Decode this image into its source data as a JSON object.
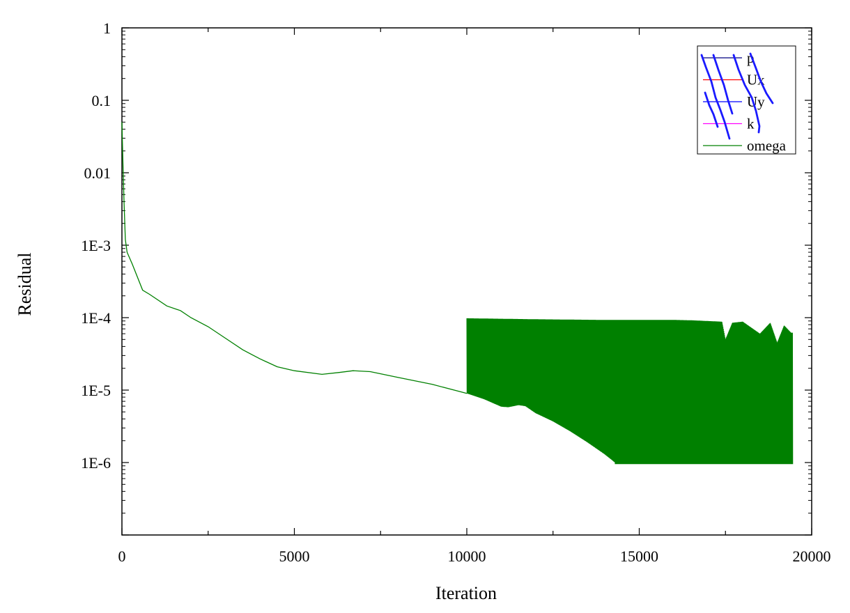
{
  "chart_data": {
    "type": "line",
    "title": "",
    "xlabel": "Iteration",
    "ylabel": "Residual",
    "x_scale": "linear",
    "y_scale": "log",
    "xlim": [
      0,
      20000
    ],
    "ylim": [
      1e-07,
      1
    ],
    "x_ticks": [
      0,
      5000,
      10000,
      15000,
      20000
    ],
    "x_tick_labels": [
      "0",
      "5000",
      "10000",
      "15000",
      "20000"
    ],
    "y_ticks": [
      1,
      0.1,
      0.01,
      0.001,
      0.0001,
      1e-05,
      1e-06
    ],
    "y_tick_labels": [
      "1",
      "0.1",
      "0.01",
      "1E-3",
      "1E-4",
      "1E-5",
      "1E-6"
    ],
    "grid": false,
    "legend_position": "top-right",
    "series": [
      {
        "name": "p",
        "color": "#000080",
        "points": []
      },
      {
        "name": "Ux",
        "color": "#ff0000",
        "points": []
      },
      {
        "name": "Uy",
        "color": "#0000ff",
        "points": []
      },
      {
        "name": "k",
        "color": "#ff00ff",
        "points": []
      },
      {
        "name": "omega",
        "color": "#008000",
        "points": [
          [
            0,
            0.05
          ],
          [
            20,
            0.02
          ],
          [
            60,
            0.004
          ],
          [
            100,
            0.0012
          ],
          [
            150,
            0.0008
          ],
          [
            300,
            0.00055
          ],
          [
            600,
            0.00024
          ],
          [
            800,
            0.00021
          ],
          [
            1300,
            0.000145
          ],
          [
            1700,
            0.000125
          ],
          [
            2000,
            0.0001
          ],
          [
            2500,
            7.5e-05
          ],
          [
            3000,
            5.2e-05
          ],
          [
            3500,
            3.6e-05
          ],
          [
            4000,
            2.7e-05
          ],
          [
            4500,
            2.1e-05
          ],
          [
            5000,
            1.85e-05
          ],
          [
            5800,
            1.65e-05
          ],
          [
            6300,
            1.75e-05
          ],
          [
            6700,
            1.85e-05
          ],
          [
            7200,
            1.8e-05
          ],
          [
            8000,
            1.5e-05
          ],
          [
            9000,
            1.2e-05
          ],
          [
            10000,
            9e-06
          ],
          [
            10500,
            7.5e-06
          ],
          [
            11000,
            5.9e-06
          ],
          [
            11200,
            5.8e-06
          ],
          [
            11500,
            6.2e-06
          ],
          [
            11700,
            6e-06
          ],
          [
            12000,
            4.8e-06
          ],
          [
            12500,
            3.7e-06
          ],
          [
            13000,
            2.7e-06
          ],
          [
            13500,
            1.9e-06
          ],
          [
            14000,
            1.3e-06
          ],
          [
            14300,
            1e-06
          ],
          [
            19400,
            1e-06
          ]
        ],
        "oscillation_band": {
          "x_start": 10000,
          "x_end": 19450,
          "upper": [
            [
              10000,
              9.8e-05
            ],
            [
              12000,
              9.5e-05
            ],
            [
              14000,
              9.3e-05
            ],
            [
              16000,
              9.3e-05
            ],
            [
              16500,
              9.2e-05
            ],
            [
              17400,
              8.8e-05
            ],
            [
              17500,
              5e-05
            ],
            [
              17700,
              8.5e-05
            ],
            [
              18000,
              8.8e-05
            ],
            [
              18500,
              6e-05
            ],
            [
              18800,
              8.5e-05
            ],
            [
              19000,
              4.5e-05
            ],
            [
              19200,
              7.8e-05
            ],
            [
              19400,
              6.2e-05
            ]
          ],
          "lower_follows_trend_until": 14300,
          "lower_floor": 9.5e-07
        }
      }
    ]
  }
}
